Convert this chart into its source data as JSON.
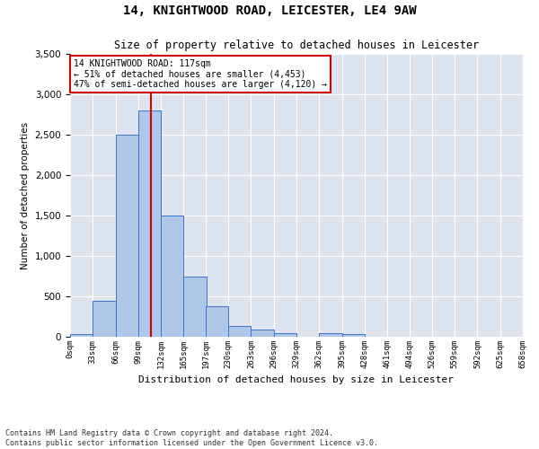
{
  "title1": "14, KNIGHTWOOD ROAD, LEICESTER, LE4 9AW",
  "title2": "Size of property relative to detached houses in Leicester",
  "xlabel": "Distribution of detached houses by size in Leicester",
  "ylabel": "Number of detached properties",
  "footnote1": "Contains HM Land Registry data © Crown copyright and database right 2024.",
  "footnote2": "Contains public sector information licensed under the Open Government Licence v3.0.",
  "annotation_line1": "14 KNIGHTWOOD ROAD: 117sqm",
  "annotation_line2": "← 51% of detached houses are smaller (4,453)",
  "annotation_line3": "47% of semi-detached houses are larger (4,120) →",
  "property_size": 117,
  "bins": [
    0,
    33,
    66,
    99,
    132,
    165,
    197,
    230,
    263,
    296,
    329,
    362,
    395,
    428,
    461,
    494,
    526,
    559,
    592,
    625,
    658
  ],
  "bin_labels": [
    "0sqm",
    "33sqm",
    "66sqm",
    "99sqm",
    "132sqm",
    "165sqm",
    "197sqm",
    "230sqm",
    "263sqm",
    "296sqm",
    "329sqm",
    "362sqm",
    "395sqm",
    "428sqm",
    "461sqm",
    "494sqm",
    "526sqm",
    "559sqm",
    "592sqm",
    "625sqm",
    "658sqm"
  ],
  "counts": [
    30,
    450,
    2500,
    2800,
    1500,
    750,
    380,
    130,
    90,
    50,
    0,
    50,
    30,
    0,
    0,
    0,
    0,
    0,
    0,
    0
  ],
  "bar_color": "#aec6e8",
  "bar_edge_color": "#4472c4",
  "vline_color": "#cc0000",
  "annotation_box_edge_color": "#cc0000",
  "background_color": "#dde4f0",
  "ylim": [
    0,
    3500
  ],
  "yticks": [
    0,
    500,
    1000,
    1500,
    2000,
    2500,
    3000,
    3500
  ]
}
